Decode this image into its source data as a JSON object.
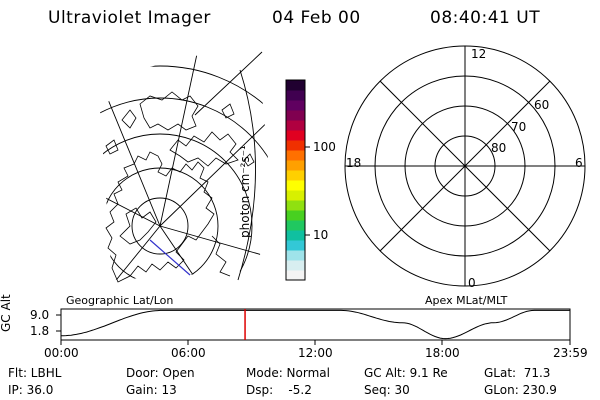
{
  "header": {
    "instrument": "Ultraviolet Imager",
    "date": "04 Feb 00",
    "time": "08:40:41 UT"
  },
  "colorbar": {
    "unit_label": "photon cm⁻²s⁻¹",
    "tick_100": "100",
    "tick_10": "10",
    "colors": [
      "#f4f4f4",
      "#d8eef0",
      "#9fe3ea",
      "#33c8d6",
      "#10c0a0",
      "#20c860",
      "#48d020",
      "#90e010",
      "#d8f000",
      "#ffff00",
      "#ffd000",
      "#ffa000",
      "#ff7000",
      "#f03000",
      "#e00020",
      "#b00040",
      "#800050",
      "#600060",
      "#400050",
      "#200030"
    ]
  },
  "polar_plot": {
    "mlt_labels": {
      "top": "12",
      "right": "6",
      "bottom": "0",
      "left": "18"
    },
    "lat_labels": [
      "80",
      "70",
      "60"
    ]
  },
  "timeline": {
    "axis_label": "GC Alt",
    "y_ticks": [
      "9.0",
      "1.8"
    ],
    "left_caption": "Geographic Lat/Lon",
    "right_caption": "Apex MLat/MLT",
    "x_ticks": [
      "00:00",
      "06:00",
      "12:00",
      "18:00",
      "23:59"
    ],
    "current_time_fraction": 0.3616,
    "altitude_profile": [
      {
        "t": 0.0,
        "alt": 1.8
      },
      {
        "t": 0.2,
        "alt": 9.0
      },
      {
        "t": 0.55,
        "alt": 9.0
      },
      {
        "t": 0.67,
        "alt": 5.5
      },
      {
        "t": 0.755,
        "alt": 1.0
      },
      {
        "t": 0.85,
        "alt": 5.5
      },
      {
        "t": 0.93,
        "alt": 9.0
      },
      {
        "t": 1.0,
        "alt": 9.0
      }
    ]
  },
  "info": {
    "flt": "Flt: LBHL",
    "ip": "IP: 36.0",
    "door": "Door: Open",
    "gain": "Gain: 13",
    "mode": "Mode: Normal",
    "dsp": "Dsp:    -5.2",
    "gc_alt": "GC Alt: 9.1 Re",
    "seq": "Seq: 30",
    "glat": "GLat:  71.3",
    "glon": "GLon: 230.9"
  }
}
